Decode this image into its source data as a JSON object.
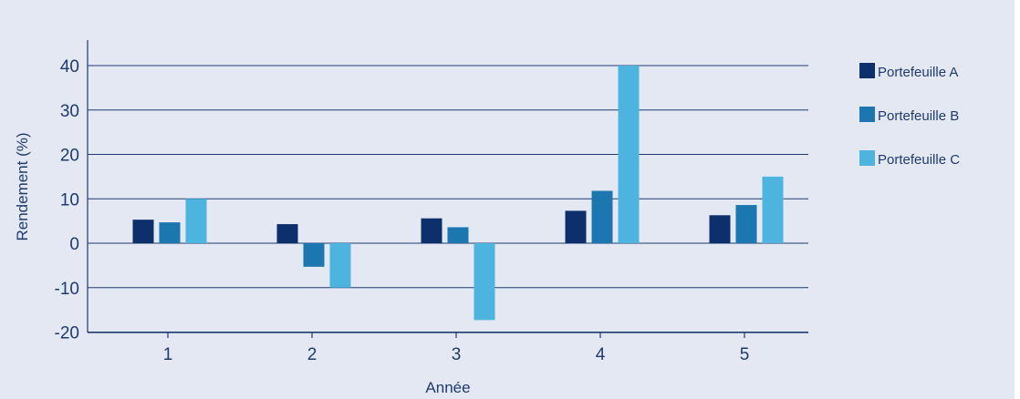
{
  "chart_data": {
    "type": "bar",
    "title": "",
    "xlabel": "Année",
    "ylabel": "Rendement (%)",
    "categories": [
      "1",
      "2",
      "3",
      "4",
      "5"
    ],
    "yticks": [
      "40",
      "30",
      "20",
      "10",
      "0",
      "-10",
      "-20"
    ],
    "ytick_values": [
      40,
      30,
      20,
      10,
      0,
      -10,
      -20
    ],
    "ylim": [
      -20,
      45
    ],
    "grid": true,
    "legend_position": "right",
    "series": [
      {
        "name": "Portefeuille A",
        "color": "#0d2f6b",
        "values": [
          5.3,
          4.3,
          5.6,
          7.3,
          6.3
        ]
      },
      {
        "name": "Portefeuille B",
        "color": "#1c77b0",
        "values": [
          4.7,
          -5.3,
          3.6,
          11.8,
          8.6
        ]
      },
      {
        "name": "Portefeuille C",
        "color": "#4db3df",
        "values": [
          10,
          -10,
          -17.3,
          40,
          15
        ]
      }
    ]
  }
}
